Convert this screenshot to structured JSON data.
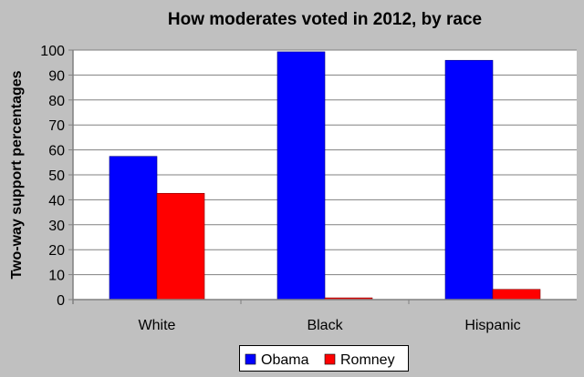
{
  "chart_data": {
    "type": "bar",
    "title": "How moderates voted in 2012, by race",
    "xlabel": "",
    "ylabel": "Two-way support percentages",
    "categories": [
      "White",
      "Black",
      "Hispanic"
    ],
    "series": [
      {
        "name": "Obama",
        "color": "#0000ff",
        "values": [
          57.4,
          99.3,
          95.9
        ]
      },
      {
        "name": "Romney",
        "color": "#ff0000",
        "values": [
          42.6,
          0.7,
          4.1
        ]
      }
    ],
    "ylim": [
      0,
      100
    ],
    "yticks": [
      0,
      10,
      20,
      30,
      40,
      50,
      60,
      70,
      80,
      90,
      100
    ],
    "grid": true,
    "legend": "bottom",
    "background": "#c0c0c0",
    "plot_background": "#ffffff"
  }
}
